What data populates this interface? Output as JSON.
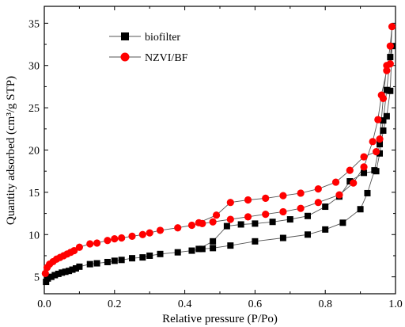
{
  "chart_data": {
    "type": "scatter",
    "title": "",
    "xlabel": "Relative pressure (P/Po)",
    "ylabel": "Quantity adsorbed (cm³/g STP)",
    "xlim": [
      0.0,
      1.0
    ],
    "ylim": [
      3,
      37
    ],
    "x_ticks": [
      0.0,
      0.2,
      0.4,
      0.6,
      0.8,
      1.0
    ],
    "x_tick_labels": [
      "0.0",
      "0.2",
      "0.4",
      "0.6",
      "0.8",
      "1.0"
    ],
    "y_ticks": [
      5,
      10,
      15,
      20,
      25,
      30,
      35
    ],
    "y_tick_labels": [
      "5",
      "10",
      "15",
      "20",
      "25",
      "30",
      "35"
    ],
    "grid": false,
    "legend_position": "top-left",
    "series": [
      {
        "name": "biofilter",
        "marker": "square",
        "color": "#000000",
        "points": [
          [
            0.005,
            4.4
          ],
          [
            0.01,
            4.8
          ],
          [
            0.02,
            5.0
          ],
          [
            0.03,
            5.2
          ],
          [
            0.04,
            5.35
          ],
          [
            0.05,
            5.5
          ],
          [
            0.06,
            5.6
          ],
          [
            0.07,
            5.7
          ],
          [
            0.08,
            5.85
          ],
          [
            0.09,
            6.0
          ],
          [
            0.1,
            6.2
          ],
          [
            0.13,
            6.5
          ],
          [
            0.15,
            6.6
          ],
          [
            0.18,
            6.75
          ],
          [
            0.2,
            6.9
          ],
          [
            0.22,
            7.0
          ],
          [
            0.25,
            7.2
          ],
          [
            0.28,
            7.3
          ],
          [
            0.3,
            7.5
          ],
          [
            0.33,
            7.7
          ],
          [
            0.38,
            7.9
          ],
          [
            0.42,
            8.1
          ],
          [
            0.45,
            8.3
          ],
          [
            0.48,
            8.4
          ],
          [
            0.53,
            8.7
          ],
          [
            0.6,
            9.2
          ],
          [
            0.68,
            9.6
          ],
          [
            0.75,
            10.0
          ],
          [
            0.8,
            10.6
          ],
          [
            0.85,
            11.4
          ],
          [
            0.9,
            13.0
          ],
          [
            0.92,
            14.9
          ],
          [
            0.94,
            17.6
          ],
          [
            0.955,
            20.7
          ],
          [
            0.965,
            23.5
          ],
          [
            0.975,
            27.1
          ],
          [
            0.985,
            31.0
          ],
          [
            0.99,
            32.3
          ],
          [
            0.985,
            27.0
          ],
          [
            0.975,
            24.0
          ],
          [
            0.965,
            22.3
          ],
          [
            0.955,
            19.6
          ],
          [
            0.945,
            17.5
          ],
          [
            0.91,
            17.3
          ],
          [
            0.87,
            16.3
          ],
          [
            0.84,
            14.5
          ],
          [
            0.8,
            13.3
          ],
          [
            0.75,
            12.2
          ],
          [
            0.7,
            11.8
          ],
          [
            0.65,
            11.5
          ],
          [
            0.6,
            11.3
          ],
          [
            0.56,
            11.2
          ],
          [
            0.52,
            11.0
          ],
          [
            0.48,
            9.2
          ],
          [
            0.44,
            8.3
          ]
        ]
      },
      {
        "name": "NZVI/BF",
        "marker": "circle",
        "color": "#ff0000",
        "points": [
          [
            0.003,
            5.4
          ],
          [
            0.008,
            6.1
          ],
          [
            0.015,
            6.5
          ],
          [
            0.025,
            6.8
          ],
          [
            0.035,
            7.1
          ],
          [
            0.045,
            7.3
          ],
          [
            0.055,
            7.5
          ],
          [
            0.065,
            7.7
          ],
          [
            0.075,
            7.9
          ],
          [
            0.085,
            8.1
          ],
          [
            0.1,
            8.5
          ],
          [
            0.13,
            8.9
          ],
          [
            0.15,
            9.0
          ],
          [
            0.18,
            9.3
          ],
          [
            0.2,
            9.5
          ],
          [
            0.22,
            9.6
          ],
          [
            0.25,
            9.8
          ],
          [
            0.28,
            10.0
          ],
          [
            0.3,
            10.2
          ],
          [
            0.33,
            10.5
          ],
          [
            0.38,
            10.8
          ],
          [
            0.42,
            11.1
          ],
          [
            0.45,
            11.3
          ],
          [
            0.48,
            11.5
          ],
          [
            0.53,
            11.8
          ],
          [
            0.58,
            12.1
          ],
          [
            0.63,
            12.4
          ],
          [
            0.68,
            12.7
          ],
          [
            0.73,
            13.1
          ],
          [
            0.78,
            13.8
          ],
          [
            0.84,
            14.7
          ],
          [
            0.88,
            16.1
          ],
          [
            0.91,
            18.0
          ],
          [
            0.935,
            21.0
          ],
          [
            0.95,
            23.6
          ],
          [
            0.96,
            26.5
          ],
          [
            0.975,
            29.4
          ],
          [
            0.985,
            32.3
          ],
          [
            0.99,
            34.6
          ],
          [
            0.985,
            30.2
          ],
          [
            0.975,
            30.0
          ],
          [
            0.965,
            26.1
          ],
          [
            0.955,
            21.3
          ],
          [
            0.945,
            19.8
          ],
          [
            0.91,
            19.2
          ],
          [
            0.87,
            17.6
          ],
          [
            0.83,
            16.2
          ],
          [
            0.78,
            15.4
          ],
          [
            0.73,
            14.9
          ],
          [
            0.68,
            14.6
          ],
          [
            0.63,
            14.3
          ],
          [
            0.58,
            14.1
          ],
          [
            0.53,
            13.8
          ],
          [
            0.49,
            12.3
          ],
          [
            0.44,
            11.4
          ]
        ]
      }
    ]
  }
}
